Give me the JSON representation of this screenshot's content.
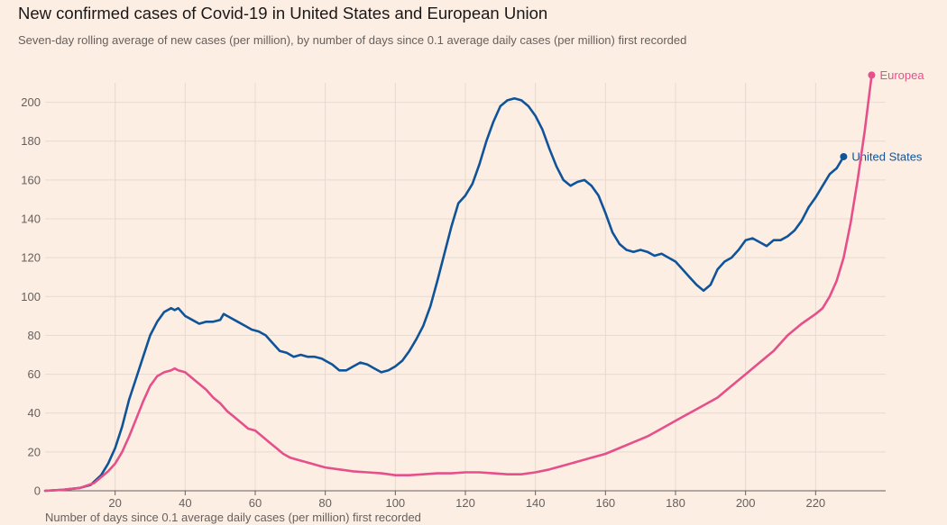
{
  "title": "New confirmed cases of Covid-19 in United States and European Union",
  "subtitle": "Seven-day rolling average of new cases (per million), by number of days since 0.1 average daily cases (per million) first recorded",
  "chart_data": {
    "type": "line",
    "title": "New confirmed cases of Covid-19 in United States and European Union",
    "subtitle": "Seven-day rolling average of new cases (per million), by number of days since 0.1 average daily cases (per million) first recorded",
    "xlabel": "Number of days since 0.1 average daily cases (per million) first recorded",
    "ylabel": "",
    "xlim": [
      0,
      240
    ],
    "ylim": [
      0,
      210
    ],
    "xticks": [
      20,
      40,
      60,
      80,
      100,
      120,
      140,
      160,
      180,
      200,
      220
    ],
    "yticks": [
      0,
      20,
      40,
      60,
      80,
      100,
      120,
      140,
      160,
      180,
      200
    ],
    "grid": true,
    "legend": "direct labels at line ends",
    "series": [
      {
        "name": "United States",
        "color": "#0f5499",
        "x": [
          0,
          5,
          10,
          13,
          16,
          18,
          20,
          22,
          24,
          26,
          28,
          30,
          32,
          34,
          36,
          37,
          38,
          40,
          42,
          44,
          46,
          48,
          50,
          51,
          53,
          55,
          57,
          59,
          61,
          63,
          65,
          67,
          69,
          71,
          73,
          75,
          77,
          79,
          80,
          82,
          84,
          86,
          88,
          90,
          92,
          94,
          96,
          98,
          100,
          102,
          104,
          106,
          108,
          110,
          112,
          114,
          116,
          118,
          120,
          122,
          124,
          126,
          128,
          130,
          132,
          134,
          136,
          138,
          140,
          142,
          144,
          146,
          148,
          150,
          152,
          154,
          156,
          158,
          160,
          162,
          164,
          166,
          168,
          170,
          172,
          174,
          176,
          178,
          180,
          182,
          184,
          186,
          188,
          190,
          192,
          194,
          196,
          198,
          200,
          202,
          204,
          206,
          208,
          210,
          212,
          214,
          216,
          218,
          220,
          222,
          224,
          226,
          228
        ],
        "values": [
          0,
          0.5,
          1.5,
          3,
          8,
          14,
          22,
          33,
          47,
          58,
          69,
          80,
          87,
          92,
          94,
          93,
          94,
          90,
          88,
          86,
          87,
          87,
          88,
          91,
          89,
          87,
          85,
          83,
          82,
          80,
          76,
          72,
          71,
          69,
          70,
          69,
          69,
          68,
          67,
          65,
          62,
          62,
          64,
          66,
          65,
          63,
          61,
          62,
          64,
          67,
          72,
          78,
          85,
          95,
          108,
          122,
          136,
          148,
          152,
          158,
          168,
          180,
          190,
          198,
          201,
          202,
          201,
          198,
          193,
          186,
          176,
          167,
          160,
          157,
          159,
          160,
          157,
          152,
          143,
          133,
          127,
          124,
          123,
          124,
          123,
          121,
          122,
          120,
          118,
          114,
          110,
          106,
          103,
          106,
          114,
          118,
          120,
          124,
          129,
          130,
          128,
          126,
          129,
          129,
          131,
          134,
          139,
          146,
          151,
          157,
          163,
          166,
          172
        ]
      },
      {
        "name": "Europea",
        "color": "#e5508a",
        "x": [
          0,
          5,
          10,
          14,
          18,
          20,
          22,
          24,
          26,
          28,
          30,
          32,
          34,
          36,
          37,
          38,
          40,
          42,
          44,
          46,
          48,
          50,
          52,
          54,
          56,
          58,
          60,
          62,
          64,
          66,
          68,
          70,
          72,
          74,
          76,
          78,
          80,
          84,
          88,
          92,
          96,
          100,
          104,
          108,
          112,
          116,
          120,
          124,
          128,
          132,
          136,
          140,
          144,
          148,
          152,
          156,
          160,
          164,
          168,
          172,
          176,
          180,
          184,
          188,
          192,
          196,
          200,
          204,
          208,
          212,
          216,
          220,
          222,
          224,
          226,
          228,
          230,
          232,
          234,
          236
        ],
        "values": [
          0,
          0.5,
          1.5,
          4,
          10,
          14,
          20,
          28,
          37,
          46,
          54,
          59,
          61,
          62,
          63,
          62,
          61,
          58,
          55,
          52,
          48,
          45,
          41,
          38,
          35,
          32,
          31,
          28,
          25,
          22,
          19,
          17,
          16,
          15,
          14,
          13,
          12,
          11,
          10,
          9.5,
          9,
          8,
          8,
          8.5,
          9,
          9,
          9.5,
          9.5,
          9,
          8.5,
          8.5,
          9.5,
          11,
          13,
          15,
          17,
          19,
          22,
          25,
          28,
          32,
          36,
          40,
          44,
          48,
          54,
          60,
          66,
          72,
          80,
          86,
          91,
          94,
          100,
          108,
          120,
          138,
          160,
          185,
          214
        ]
      }
    ]
  }
}
